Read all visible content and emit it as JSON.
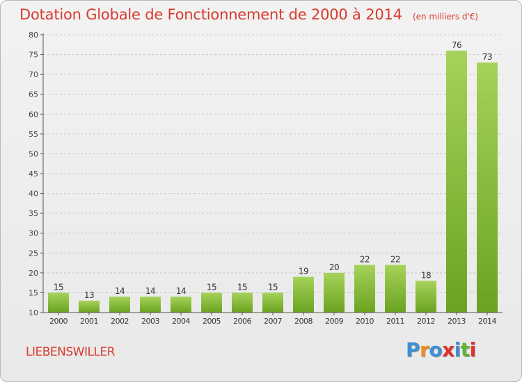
{
  "title": "Dotation Globale de Fonctionnement de 2000 à 2014",
  "subtitle": "(en milliers d'€)",
  "commune": "LIEBENSWILLER",
  "logo": {
    "letters": [
      "P",
      "r",
      "o",
      "x",
      "i",
      "t",
      "i"
    ],
    "colors": [
      "#3d8fd8",
      "#f18c1c",
      "#3d8fd8",
      "#e0312a",
      "#3d8fd8",
      "#5db530",
      "#e0312a"
    ]
  },
  "colors": {
    "title": "#d93a2e",
    "bar_light": "#a6d25a",
    "bar_dark": "#6aa320",
    "grid": "#c8c8c8",
    "axis": "#555555"
  },
  "chart_data": {
    "type": "bar",
    "categories": [
      "2000",
      "2001",
      "2002",
      "2003",
      "2004",
      "2005",
      "2006",
      "2007",
      "2008",
      "2009",
      "2010",
      "2011",
      "2012",
      "2013",
      "2014"
    ],
    "values": [
      15,
      13,
      14,
      14,
      14,
      15,
      15,
      15,
      19,
      20,
      22,
      22,
      18,
      76,
      73
    ],
    "yticks": [
      10,
      15,
      20,
      25,
      30,
      35,
      40,
      45,
      50,
      55,
      60,
      65,
      70,
      75,
      80
    ],
    "ylim": [
      10,
      80
    ],
    "grid": true,
    "legend": "none"
  }
}
